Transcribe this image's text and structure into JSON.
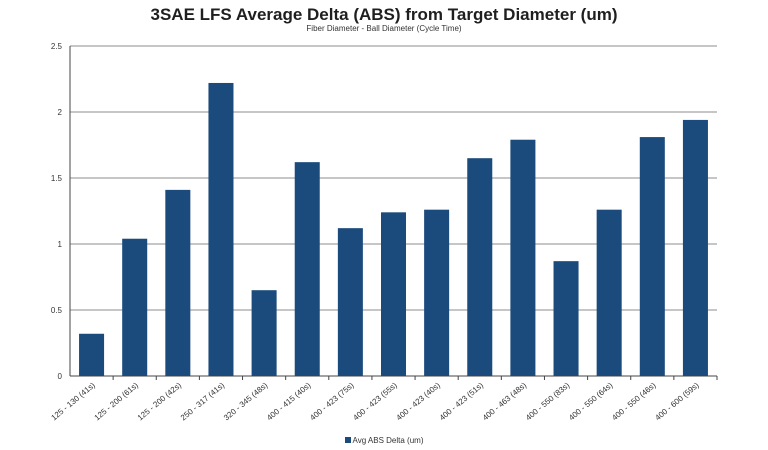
{
  "chart_data": {
    "type": "bar",
    "title": "3SAE LFS Average Delta (ABS) from Target Diameter (um)",
    "subtitle": "Fiber Diameter - Ball Diameter (Cycle Time)",
    "categories": [
      "125 - 130 (41s)",
      "125 - 200 (61s)",
      "125 - 200 (42s)",
      "250 - 317 (41s)",
      "320 - 345 (48s)",
      "400 - 415 (40s)",
      "400 - 423 (75s)",
      "400 - 423 (55s)",
      "400 - 423 (40s)",
      "400 - 423 (51s)",
      "400 - 463 (48s)",
      "400 - 550 (83s)",
      "400 - 550 (64s)",
      "400 - 550 (46s)",
      "400 - 600 (59s)"
    ],
    "series": [
      {
        "name": "Avg ABS Delta (um)",
        "values": [
          0.32,
          1.04,
          1.41,
          2.22,
          0.65,
          1.62,
          1.12,
          1.24,
          1.26,
          1.65,
          1.79,
          0.87,
          1.26,
          1.81,
          1.94
        ]
      }
    ],
    "ylim": [
      0,
      2.5
    ],
    "yticks": [
      "0",
      "0.5",
      "1",
      "1.5",
      "2",
      "2.5"
    ],
    "grid": true,
    "legend_position": "bottom",
    "bar_color": "#1b4a7c",
    "grid_color": "#8c8c8c"
  }
}
